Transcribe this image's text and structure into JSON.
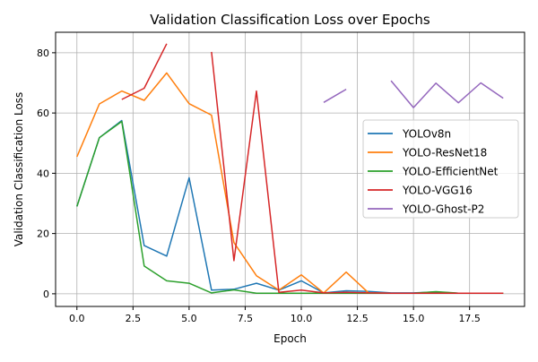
{
  "chart_data": {
    "type": "line",
    "title": "Validation Classification Loss over Epochs",
    "xlabel": "Epoch",
    "ylabel": "Validation Classification Loss",
    "xlim": [
      -0.95,
      19.95
    ],
    "ylim": [
      -4.2,
      86.8
    ],
    "xticks": [
      0,
      2.5,
      5,
      7.5,
      10,
      12.5,
      15,
      17.5
    ],
    "xtick_labels": [
      "0.0",
      "2.5",
      "5.0",
      "7.5",
      "10.0",
      "12.5",
      "15.0",
      "17.5"
    ],
    "yticks": [
      0,
      20,
      40,
      60,
      80
    ],
    "ytick_labels": [
      "0",
      "20",
      "40",
      "60",
      "80"
    ],
    "grid": true,
    "legend_placement": "center-right",
    "x": [
      0,
      1,
      2,
      3,
      4,
      5,
      6,
      7,
      8,
      9,
      10,
      11,
      12,
      13,
      14,
      15,
      16,
      17,
      18,
      19
    ],
    "series": [
      {
        "name": "YOLOv8n",
        "color": "#1f77b4",
        "values": [
          29,
          51.8,
          57.5,
          16,
          12.5,
          38.5,
          1.2,
          1.5,
          3.5,
          1.2,
          4.3,
          0.3,
          1,
          0.8,
          0.3,
          0.3,
          0.6,
          0.2,
          0.2,
          0.2
        ]
      },
      {
        "name": "YOLO-ResNet18",
        "color": "#ff7f0e",
        "values": [
          45.5,
          63,
          67.3,
          64.2,
          73.3,
          63.1,
          59.3,
          17,
          6,
          1.2,
          6.3,
          0.3,
          7.2,
          0.3,
          0.2,
          0.2,
          0.2,
          0.2,
          0.2,
          0.2
        ]
      },
      {
        "name": "YOLO-EfficientNet",
        "color": "#2ca02c",
        "values": [
          29,
          51.8,
          57.2,
          9.2,
          4.3,
          3.5,
          0.3,
          1.3,
          0.2,
          0.2,
          0.2,
          0.2,
          0.2,
          0.2,
          0.2,
          0.2,
          0.7,
          0.2,
          0.2,
          0.2
        ]
      },
      {
        "name": "YOLO-VGG16",
        "color": "#d62728",
        "values": [
          null,
          null,
          64.5,
          68.2,
          83,
          null,
          80.3,
          11,
          67.3,
          0.5,
          1.2,
          0.3,
          0.5,
          0.3,
          0.2,
          0.2,
          0.2,
          0.2,
          0.2,
          0.2
        ]
      },
      {
        "name": "YOLO-Ghost-P2",
        "color": "#9467bd",
        "values": [
          null,
          null,
          null,
          null,
          null,
          null,
          null,
          null,
          null,
          null,
          null,
          63.5,
          67.9,
          null,
          70.7,
          61.8,
          69.9,
          63.4,
          70,
          64.9
        ]
      }
    ]
  }
}
